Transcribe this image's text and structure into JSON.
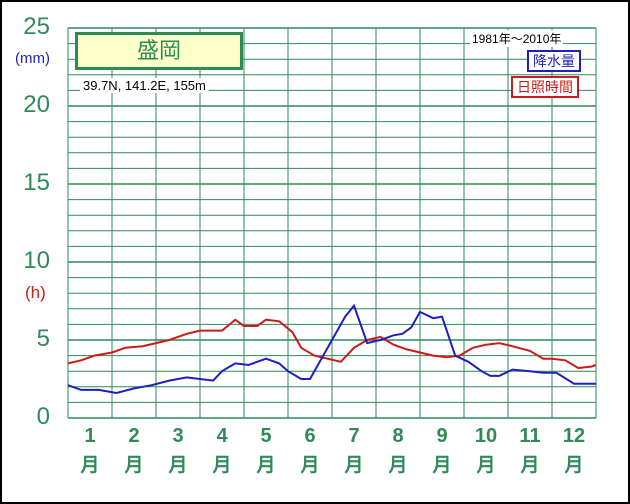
{
  "station": "盛岡",
  "coords": "39.7N,  141.2E,  155m",
  "period": "1981年～2010年",
  "units": {
    "precip": "(mm)",
    "sun": "(h)"
  },
  "colors": {
    "precip": "#1f1fbf",
    "sun": "#cc1a1a",
    "grid": "#2e8b57"
  },
  "chart_data": {
    "type": "line",
    "x_unit": "月",
    "categories": [
      "1",
      "2",
      "3",
      "4",
      "5",
      "6",
      "7",
      "8",
      "9",
      "10",
      "11",
      "12"
    ],
    "yticks": [
      "0",
      "5",
      "10",
      "15",
      "20",
      "25"
    ],
    "ylim": [
      0,
      25
    ],
    "grid": true,
    "legend_position": "top-right",
    "x_range": [
      0.5,
      12.5
    ],
    "series": [
      {
        "name": "降水量",
        "color": "#1f1fbf",
        "x": [
          0.5,
          0.8,
          1.2,
          1.6,
          2.0,
          2.4,
          2.8,
          3.2,
          3.5,
          3.8,
          4.0,
          4.3,
          4.6,
          5.0,
          5.3,
          5.5,
          5.8,
          6.0,
          6.3,
          6.6,
          6.8,
          7.0,
          7.3,
          7.6,
          7.9,
          8.1,
          8.3,
          8.5,
          8.8,
          9.0,
          9.3,
          9.6,
          9.9,
          10.1,
          10.3,
          10.6,
          11.0,
          11.3,
          11.6,
          12.0,
          12.3,
          12.5
        ],
        "values": [
          2.1,
          1.8,
          1.8,
          1.6,
          1.9,
          2.1,
          2.4,
          2.6,
          2.5,
          2.4,
          3.0,
          3.5,
          3.4,
          3.8,
          3.5,
          3.0,
          2.5,
          2.5,
          4.0,
          5.5,
          6.5,
          7.2,
          4.8,
          5.0,
          5.3,
          5.4,
          5.8,
          6.8,
          6.4,
          6.5,
          4.0,
          3.6,
          3.0,
          2.7,
          2.7,
          3.1,
          3.0,
          2.9,
          2.9,
          2.2,
          2.2,
          2.2
        ]
      },
      {
        "name": "日照時間",
        "color": "#cc1a1a",
        "x": [
          0.5,
          0.8,
          1.1,
          1.5,
          1.8,
          2.2,
          2.5,
          2.8,
          3.2,
          3.5,
          3.8,
          4.0,
          4.3,
          4.5,
          4.8,
          5.0,
          5.3,
          5.6,
          5.8,
          6.1,
          6.4,
          6.7,
          7.0,
          7.3,
          7.6,
          7.9,
          8.2,
          8.5,
          8.8,
          9.1,
          9.4,
          9.7,
          10.0,
          10.3,
          10.6,
          11.0,
          11.3,
          11.5,
          11.8,
          12.1,
          12.4,
          12.5
        ],
        "values": [
          3.5,
          3.7,
          4.0,
          4.2,
          4.5,
          4.6,
          4.8,
          5.0,
          5.4,
          5.6,
          5.6,
          5.6,
          6.3,
          5.9,
          5.9,
          6.3,
          6.2,
          5.5,
          4.5,
          4.0,
          3.8,
          3.6,
          4.5,
          5.0,
          5.2,
          4.7,
          4.4,
          4.2,
          4.0,
          3.9,
          4.0,
          4.5,
          4.7,
          4.8,
          4.6,
          4.3,
          3.8,
          3.8,
          3.7,
          3.2,
          3.3,
          3.4
        ]
      }
    ]
  }
}
